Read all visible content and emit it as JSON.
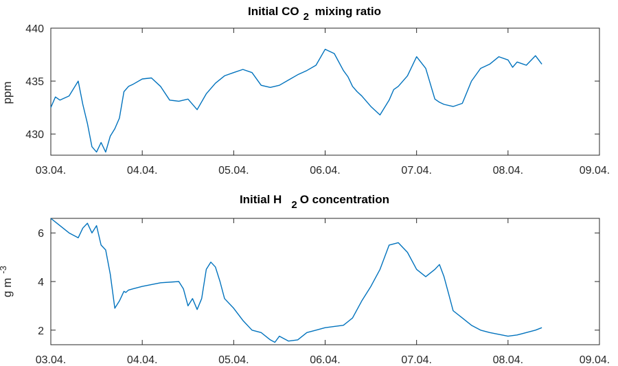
{
  "chart_data": [
    {
      "type": "line",
      "title_main": "Initial CO",
      "title_sub": "2",
      "title_rest": " mixing ratio",
      "ylabel": "ppm",
      "ylim": [
        428,
        440
      ],
      "yticks": [
        430,
        435,
        440
      ],
      "xlim": [
        0,
        6
      ],
      "xticks": [
        "03.04.",
        "04.04.",
        "05.04.",
        "06.04.",
        "07.04.",
        "08.04.",
        "09.04."
      ],
      "color": "#0072BD",
      "series": [
        {
          "x": [
            0.0,
            0.05,
            0.1,
            0.2,
            0.3,
            0.35,
            0.4,
            0.45,
            0.5,
            0.55,
            0.6,
            0.65,
            0.7,
            0.75,
            0.8,
            0.85,
            0.9,
            1.0,
            1.1,
            1.2,
            1.3,
            1.4,
            1.5,
            1.6,
            1.7,
            1.8,
            1.9,
            2.0,
            2.1,
            2.2,
            2.3,
            2.4,
            2.5,
            2.6,
            2.7,
            2.8,
            2.9,
            3.0,
            3.1,
            3.2,
            3.25,
            3.3,
            3.35,
            3.4,
            3.5,
            3.6,
            3.7,
            3.75,
            3.8,
            3.9,
            4.0,
            4.1,
            4.2,
            4.25,
            4.3,
            4.4,
            4.5,
            4.6,
            4.7,
            4.8,
            4.9,
            5.0,
            5.05,
            5.1,
            5.2,
            5.3,
            5.37
          ],
          "y": [
            432.5,
            433.5,
            433.2,
            433.6,
            435.0,
            432.8,
            431.0,
            428.8,
            428.3,
            429.2,
            428.3,
            429.8,
            430.5,
            431.5,
            434.0,
            434.5,
            434.7,
            435.2,
            435.3,
            434.5,
            433.2,
            433.1,
            433.3,
            432.3,
            433.8,
            434.8,
            435.5,
            435.8,
            436.1,
            435.8,
            434.6,
            434.4,
            434.6,
            435.1,
            435.6,
            436.0,
            436.5,
            438.0,
            437.6,
            436.0,
            435.4,
            434.5,
            434.0,
            433.6,
            432.6,
            431.8,
            433.2,
            434.2,
            434.5,
            435.5,
            437.3,
            436.2,
            433.3,
            433.0,
            432.8,
            432.6,
            432.9,
            435.0,
            436.2,
            436.6,
            437.3,
            437.0,
            436.3,
            436.8,
            436.5,
            437.4,
            436.6
          ]
        }
      ]
    },
    {
      "type": "line",
      "title_main": "Initial H",
      "title_sub": "2",
      "title_rest": "O concentration",
      "ylabel_main": "g m",
      "ylabel_sup": "-3",
      "ylim": [
        1.4,
        6.6
      ],
      "yticks": [
        2,
        4,
        6
      ],
      "xlim": [
        0,
        6
      ],
      "xticks": [
        "03.04.",
        "04.04.",
        "05.04.",
        "06.04.",
        "07.04.",
        "08.04.",
        "09.04."
      ],
      "color": "#0072BD",
      "series": [
        {
          "x": [
            0.0,
            0.1,
            0.2,
            0.3,
            0.35,
            0.4,
            0.45,
            0.5,
            0.55,
            0.6,
            0.65,
            0.7,
            0.75,
            0.8,
            0.82,
            0.85,
            0.9,
            1.0,
            1.2,
            1.4,
            1.45,
            1.5,
            1.55,
            1.6,
            1.65,
            1.7,
            1.75,
            1.8,
            1.85,
            1.9,
            2.0,
            2.1,
            2.2,
            2.3,
            2.4,
            2.45,
            2.5,
            2.6,
            2.7,
            2.8,
            2.9,
            3.0,
            3.2,
            3.3,
            3.4,
            3.5,
            3.6,
            3.7,
            3.8,
            3.85,
            3.9,
            4.0,
            4.1,
            4.2,
            4.25,
            4.3,
            4.35,
            4.4,
            4.5,
            4.6,
            4.7,
            4.8,
            5.0,
            5.1,
            5.2,
            5.3,
            5.37
          ],
          "y": [
            6.6,
            6.3,
            6.0,
            5.8,
            6.2,
            6.4,
            6.0,
            6.3,
            5.5,
            5.3,
            4.3,
            2.9,
            3.2,
            3.6,
            3.55,
            3.65,
            3.7,
            3.8,
            3.95,
            4.0,
            3.7,
            3.0,
            3.3,
            2.85,
            3.3,
            4.5,
            4.8,
            4.6,
            4.0,
            3.3,
            2.9,
            2.4,
            2.0,
            1.9,
            1.6,
            1.5,
            1.75,
            1.55,
            1.6,
            1.9,
            2.0,
            2.1,
            2.2,
            2.5,
            3.2,
            3.8,
            4.5,
            5.5,
            5.6,
            5.4,
            5.2,
            4.5,
            4.2,
            4.5,
            4.7,
            4.2,
            3.5,
            2.8,
            2.5,
            2.2,
            2.0,
            1.9,
            1.75,
            1.8,
            1.9,
            2.0,
            2.1
          ]
        }
      ]
    }
  ]
}
